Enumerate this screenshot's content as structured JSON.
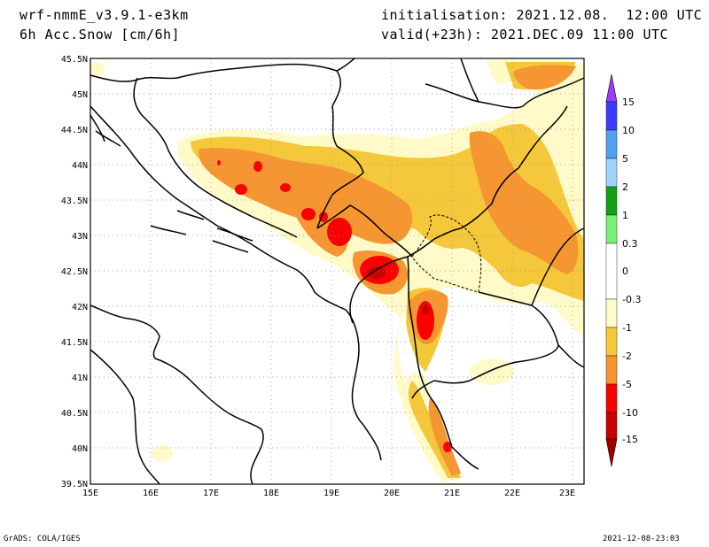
{
  "header": {
    "model": "wrf-nmmE_v3.9.1-e3km",
    "field": "6h Acc.Snow [cm/6h]",
    "init": "initialisation: 2021.12.08.  12:00 UTC",
    "valid": "valid(+23h): 2021.DEC.09 11:00 UTC"
  },
  "axes": {
    "lat_labels": [
      "45.5N",
      "45N",
      "44.5N",
      "44N",
      "43.5N",
      "43N",
      "42.5N",
      "42N",
      "41.5N",
      "41N",
      "40.5N",
      "40N",
      "39.5N"
    ],
    "lon_labels": [
      "15E",
      "16E",
      "17E",
      "18E",
      "19E",
      "20E",
      "21E",
      "22E",
      "23E"
    ],
    "lat_range": [
      39.5,
      45.5
    ],
    "lon_range": [
      15,
      23.2
    ]
  },
  "legend": {
    "labels": [
      "15",
      "10",
      "5",
      "2",
      "1",
      "0.3",
      "0",
      "-0.3",
      "-1",
      "-2",
      "-5",
      "-10",
      "-15"
    ],
    "colors": [
      "#9b3cff",
      "#3c3cff",
      "#50a0f0",
      "#a0d2fa",
      "#14a014",
      "#78f078",
      "#ffffff",
      "#fffac8",
      "#f5c83c",
      "#f59632",
      "#fa0000",
      "#c80000",
      "#a00000"
    ]
  },
  "footer": {
    "left": "GrADS: COLA/IGES",
    "right": "2021-12-08-23:03"
  }
}
